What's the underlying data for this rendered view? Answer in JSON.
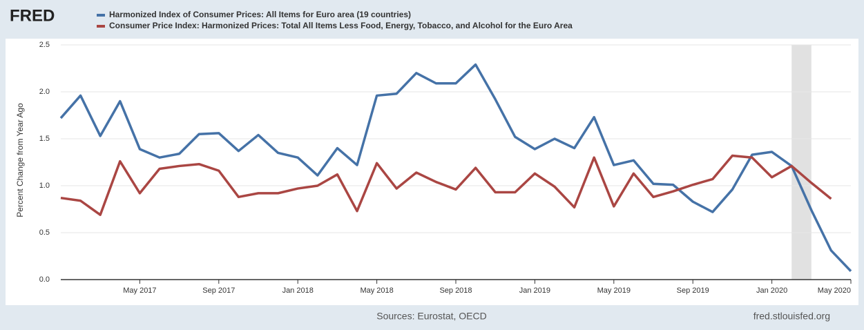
{
  "chart_data": {
    "type": "line",
    "logo": "FRED",
    "y_label": "Percent Change from Year Ago",
    "source": "Sources: Eurostat, OECD",
    "site": "fred.stlouisfed.org",
    "categories": [
      null,
      null,
      null,
      null,
      "May 2017",
      null,
      null,
      null,
      "Sep 2017",
      null,
      null,
      null,
      "Jan 2018",
      null,
      null,
      null,
      "May 2018",
      null,
      null,
      null,
      "Sep 2018",
      null,
      null,
      null,
      "Jan 2019",
      null,
      null,
      null,
      "May 2019",
      null,
      null,
      null,
      "Sep 2019",
      null,
      null,
      null,
      "Jan 2020",
      null,
      null,
      null,
      "May 2020"
    ],
    "series": [
      {
        "name": "Harmonized Index of Consumer Prices: All Items for Euro area (19 countries)",
        "color": "#4572a7",
        "values": [
          1.72,
          1.96,
          1.53,
          1.9,
          1.39,
          1.3,
          1.34,
          1.55,
          1.56,
          1.37,
          1.54,
          1.35,
          1.3,
          1.11,
          1.4,
          1.22,
          1.96,
          1.98,
          2.2,
          2.09,
          2.09,
          2.29,
          1.92,
          1.52,
          1.39,
          1.5,
          1.4,
          1.73,
          1.22,
          1.27,
          1.02,
          1.01,
          0.83,
          0.72,
          0.96,
          1.33,
          1.36,
          1.21,
          0.74,
          0.31,
          0.09
        ]
      },
      {
        "name": "Consumer Price Index: Harmonized Prices: Total All Items Less Food, Energy, Tobacco, and Alcohol for the Euro Area",
        "color": "#aa4643",
        "values": [
          0.87,
          0.84,
          0.69,
          1.26,
          0.92,
          1.18,
          1.21,
          1.23,
          1.16,
          0.88,
          0.92,
          0.92,
          0.97,
          1.0,
          1.12,
          0.73,
          1.24,
          0.97,
          1.14,
          1.04,
          0.96,
          1.19,
          0.93,
          0.93,
          1.13,
          0.99,
          0.77,
          1.3,
          0.78,
          1.13,
          0.88,
          0.94,
          1.01,
          1.07,
          1.32,
          1.3,
          1.09,
          1.21,
          1.03,
          0.86,
          null
        ]
      }
    ],
    "recession": {
      "from": 37,
      "to": 38
    },
    "recession_color": "#e1e1e1",
    "ylim": [
      0,
      2.5
    ],
    "yticks": [
      {
        "value": 0,
        "label": "0.0"
      },
      0.5,
      {
        "value": 1,
        "label": "1.0"
      },
      1.5,
      {
        "value": 2,
        "label": "2.0"
      },
      2.5
    ],
    "grid": true
  }
}
